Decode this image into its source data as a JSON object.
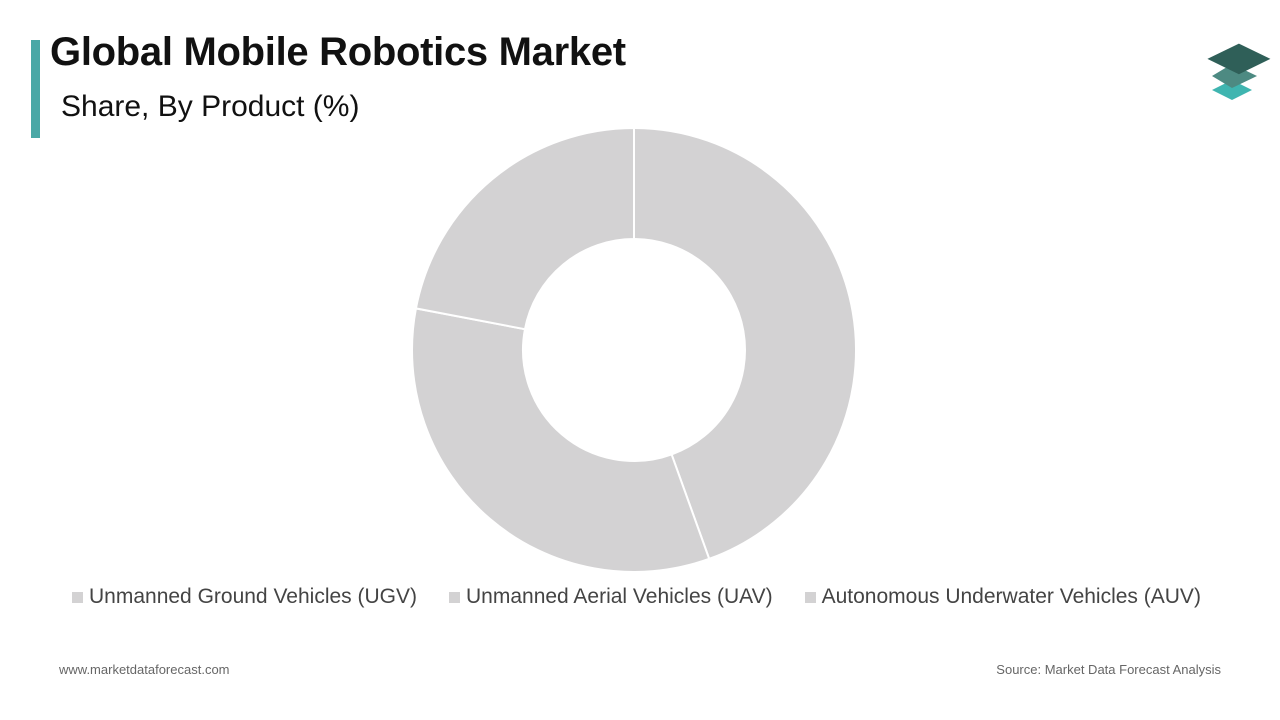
{
  "header": {
    "title": "Global Mobile Robotics Market",
    "subtitle": "Share, By Product (%)"
  },
  "brand": {
    "logo_icon": "stacked-layers-icon",
    "accent_color": "#4aa8a6",
    "logo_colors": [
      "#2f5f58",
      "#4d8a82",
      "#3fb5b0"
    ]
  },
  "chart_data": {
    "type": "pie",
    "donut": true,
    "categories": [
      "Unmanned Ground Vehicles (UGV)",
      "Unmanned Aerial Vehicles (UAV)",
      "Autonomous Underwater Vehicles (AUV)"
    ],
    "values": [
      44.5,
      33.5,
      22.0
    ],
    "colors": [
      "#d3d2d3",
      "#d3d2d3",
      "#d3d2d3"
    ],
    "legend_position": "bottom"
  },
  "footer": {
    "website": "www.marketdataforecast.com",
    "source": "Source: Market Data Forecast Analysis"
  }
}
